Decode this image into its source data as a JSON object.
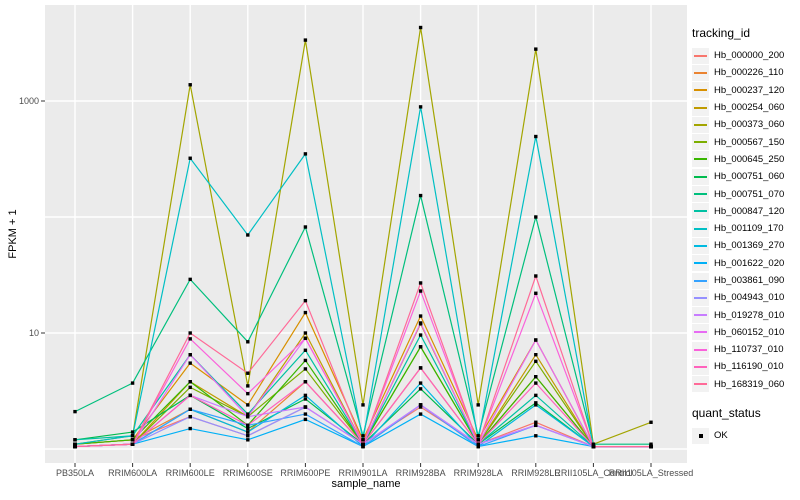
{
  "figure": {
    "background": "#FFFFFF",
    "panel_background": "#EBEBEB",
    "gridline_color": "#FFFFFF",
    "tick_color": "#333333",
    "tick_label_color": "#4D4D4D",
    "point_color": "#000000"
  },
  "axes": {
    "x_title": "sample_name",
    "y_title": "FPKM + 1",
    "y_tick_labels": [
      "1000",
      "10"
    ],
    "y_tick_values": [
      1000,
      10
    ]
  },
  "legend": {
    "tracking_title": "tracking_id",
    "quant_title": "quant_status",
    "key_background": "#F2F2F2",
    "quant_items": [
      {
        "label": "OK",
        "shape": "square",
        "color": "#000000"
      }
    ]
  },
  "chart_data": {
    "type": "line",
    "title": "",
    "xlabel": "sample_name",
    "ylabel": "FPKM + 1",
    "y_scale": "log10",
    "ylim": [
      1,
      6500
    ],
    "gridlines_y": [
      1,
      10,
      100,
      1000
    ],
    "legend_position": "right",
    "categories": [
      "PB350LA",
      "RRIM600LA",
      "RRIM600LE",
      "RRIM600SE",
      "RRIM600PE",
      "RRIM901LA",
      "RRIM928BA",
      "RRIM928LA",
      "RRIM928LE",
      "RRII105LA_Control",
      "RRII105LA_Stressed"
    ],
    "series": [
      {
        "name": "Hb_000000_200",
        "color": "#F8766D",
        "values": [
          1.1,
          1.2,
          1.9,
          1.3,
          2.3,
          1.1,
          2.3,
          1.1,
          1.7,
          1.05,
          1.05
        ]
      },
      {
        "name": "Hb_000226_110",
        "color": "#EA8331",
        "values": [
          1.1,
          1.2,
          2.2,
          1.4,
          3.8,
          1.1,
          5.0,
          1.1,
          4.2,
          1.05,
          1.05
        ]
      },
      {
        "name": "Hb_000237_120",
        "color": "#D89000",
        "values": [
          1.1,
          1.2,
          5.5,
          2.4,
          15,
          1.2,
          14,
          1.2,
          8.7,
          1.05,
          1.05
        ]
      },
      {
        "name": "Hb_000254_060",
        "color": "#C09B00",
        "values": [
          1.05,
          1.1,
          3.8,
          1.9,
          10,
          1.1,
          12,
          1.1,
          6.5,
          1.05,
          1.05
        ]
      },
      {
        "name": "Hb_000373_060",
        "color": "#A3A500",
        "values": [
          1.1,
          1.3,
          1380,
          3.5,
          3350,
          2.4,
          4300,
          2.4,
          2800,
          1.1,
          1.7
        ]
      },
      {
        "name": "Hb_000567_150",
        "color": "#7CAE00",
        "values": [
          1.05,
          1.1,
          3.4,
          1.9,
          4.9,
          1.1,
          7.6,
          1.1,
          5.7,
          1.05,
          1.05
        ]
      },
      {
        "name": "Hb_000645_250",
        "color": "#39B600",
        "values": [
          1.1,
          1.2,
          3.8,
          1.6,
          5.8,
          1.1,
          7.6,
          1.1,
          4.2,
          1.05,
          1.05
        ]
      },
      {
        "name": "Hb_000751_060",
        "color": "#00BB4E",
        "values": [
          1.2,
          1.4,
          2.9,
          1.5,
          2.7,
          1.1,
          3.3,
          1.1,
          2.5,
          1.05,
          1.05
        ]
      },
      {
        "name": "Hb_000751_070",
        "color": "#00BF7D",
        "values": [
          2.1,
          3.7,
          29,
          8.4,
          82,
          1.3,
          153,
          1.3,
          100,
          1.1,
          1.1
        ]
      },
      {
        "name": "Hb_000847_120",
        "color": "#00C1A3",
        "values": [
          1.2,
          1.3,
          6.5,
          2.0,
          7.1,
          1.1,
          9.6,
          1.1,
          2.9,
          1.05,
          1.05
        ]
      },
      {
        "name": "Hb_001109_170",
        "color": "#00BFC4",
        "values": [
          1.1,
          1.3,
          321,
          70,
          350,
          1.2,
          890,
          1.2,
          494,
          1.05,
          1.05
        ]
      },
      {
        "name": "Hb_001369_270",
        "color": "#00BAE0",
        "values": [
          1.05,
          1.1,
          2.2,
          1.4,
          2.9,
          1.05,
          3.7,
          1.05,
          2.4,
          1.05,
          1.05
        ]
      },
      {
        "name": "Hb_001622_020",
        "color": "#00B0F6",
        "values": [
          1.05,
          1.1,
          1.5,
          1.2,
          1.8,
          1.05,
          2.0,
          1.05,
          1.3,
          1.05,
          1.05
        ]
      },
      {
        "name": "Hb_003861_090",
        "color": "#35A2FF",
        "values": [
          1.05,
          1.1,
          2.2,
          1.6,
          2.0,
          1.05,
          2.4,
          1.05,
          1.6,
          1.05,
          1.05
        ]
      },
      {
        "name": "Hb_004943_010",
        "color": "#9590FF",
        "values": [
          1.05,
          1.1,
          1.9,
          1.3,
          2.3,
          1.1,
          2.4,
          1.1,
          1.6,
          1.05,
          1.05
        ]
      },
      {
        "name": "Hb_019278_010",
        "color": "#C77CFF",
        "values": [
          1.05,
          1.1,
          2.9,
          1.9,
          2.3,
          1.1,
          2.4,
          1.1,
          1.6,
          1.05,
          1.05
        ]
      },
      {
        "name": "Hb_060152_010",
        "color": "#E76BF3",
        "values": [
          1.05,
          1.1,
          6.5,
          1.9,
          9.0,
          1.1,
          12.2,
          1.1,
          8.7,
          1.05,
          1.05
        ]
      },
      {
        "name": "Hb_110737_010",
        "color": "#FA62DB",
        "values": [
          1.05,
          1.1,
          8.9,
          3.0,
          9.0,
          1.1,
          23,
          1.1,
          22,
          1.05,
          1.05
        ]
      },
      {
        "name": "Hb_116190_010",
        "color": "#FF62BC",
        "values": [
          1.05,
          1.1,
          2.9,
          1.6,
          3.8,
          1.1,
          5.0,
          1.1,
          3.7,
          1.05,
          1.05
        ]
      },
      {
        "name": "Hb_168319_060",
        "color": "#FF6A98",
        "values": [
          1.05,
          1.1,
          10,
          4.5,
          19,
          1.1,
          27,
          1.1,
          31,
          1.05,
          1.05
        ]
      }
    ]
  }
}
